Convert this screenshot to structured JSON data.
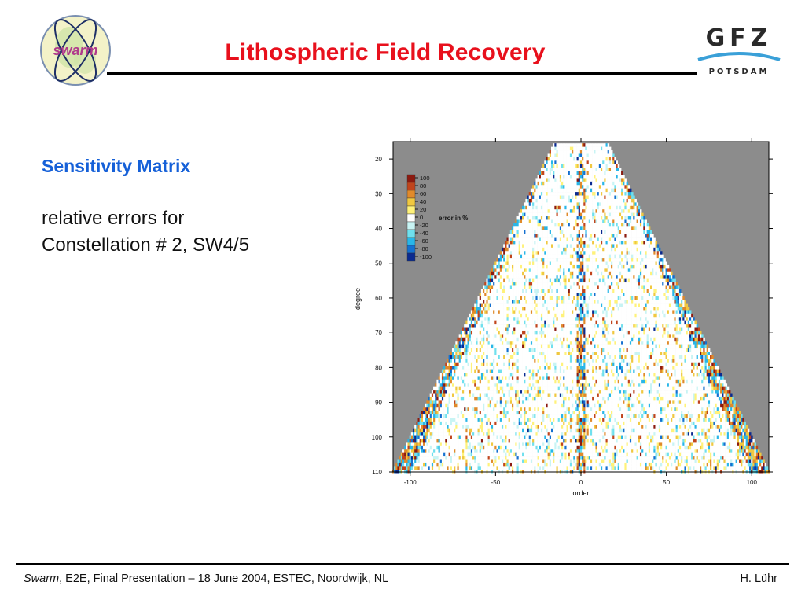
{
  "header": {
    "title": "Lithospheric Field Recovery",
    "swarm_logo_text": "swarm",
    "gfz_logo_text": "GFZ",
    "gfz_logo_subtext": "POTSDAM"
  },
  "body": {
    "subtitle": "Sensitivity Matrix",
    "description_line1": "relative errors for",
    "description_line2": "Constellation # 2, SW4/5"
  },
  "footer": {
    "left_italic": "Swarm",
    "left_rest": ", E2E, Final Presentation – 18 June 2004, ESTEC, Noordwijk, NL",
    "right": "H. Lühr"
  },
  "colors": {
    "title": "#e8101c",
    "subtitle": "#1560d8",
    "masked_area": "#8c8c8c"
  },
  "chart_data": {
    "type": "heatmap",
    "xlabel": "order",
    "ylabel": "degree",
    "xlim": [
      -110,
      110
    ],
    "ylim": [
      110,
      15
    ],
    "xticks": [
      -100,
      -50,
      0,
      50,
      100
    ],
    "yticks": [
      20,
      30,
      40,
      50,
      60,
      70,
      80,
      90,
      100,
      110
    ],
    "xtick_labels": [
      "-100",
      "-50",
      "0",
      "50",
      "100"
    ],
    "ytick_labels": [
      "20",
      "30",
      "40",
      "50",
      "60",
      "70",
      "80",
      "90",
      "100",
      "110"
    ],
    "valid_region": "|order| <= degree",
    "colorbar": {
      "label": "error in %",
      "levels": [
        100,
        80,
        60,
        40,
        20,
        0,
        -20,
        -40,
        -60,
        -80,
        -100
      ],
      "level_labels": [
        "100",
        "80",
        "60",
        "40",
        "20",
        "0",
        "-20",
        "-40",
        "-60",
        "-80",
        "-100"
      ],
      "colors": [
        "#8b1a10",
        "#c0441c",
        "#e08a2a",
        "#f0c840",
        "#fff27a",
        "#ffffff",
        "#c8f4f4",
        "#6fe0ee",
        "#28b6e8",
        "#1470d0",
        "#0a2a90"
      ]
    }
  }
}
